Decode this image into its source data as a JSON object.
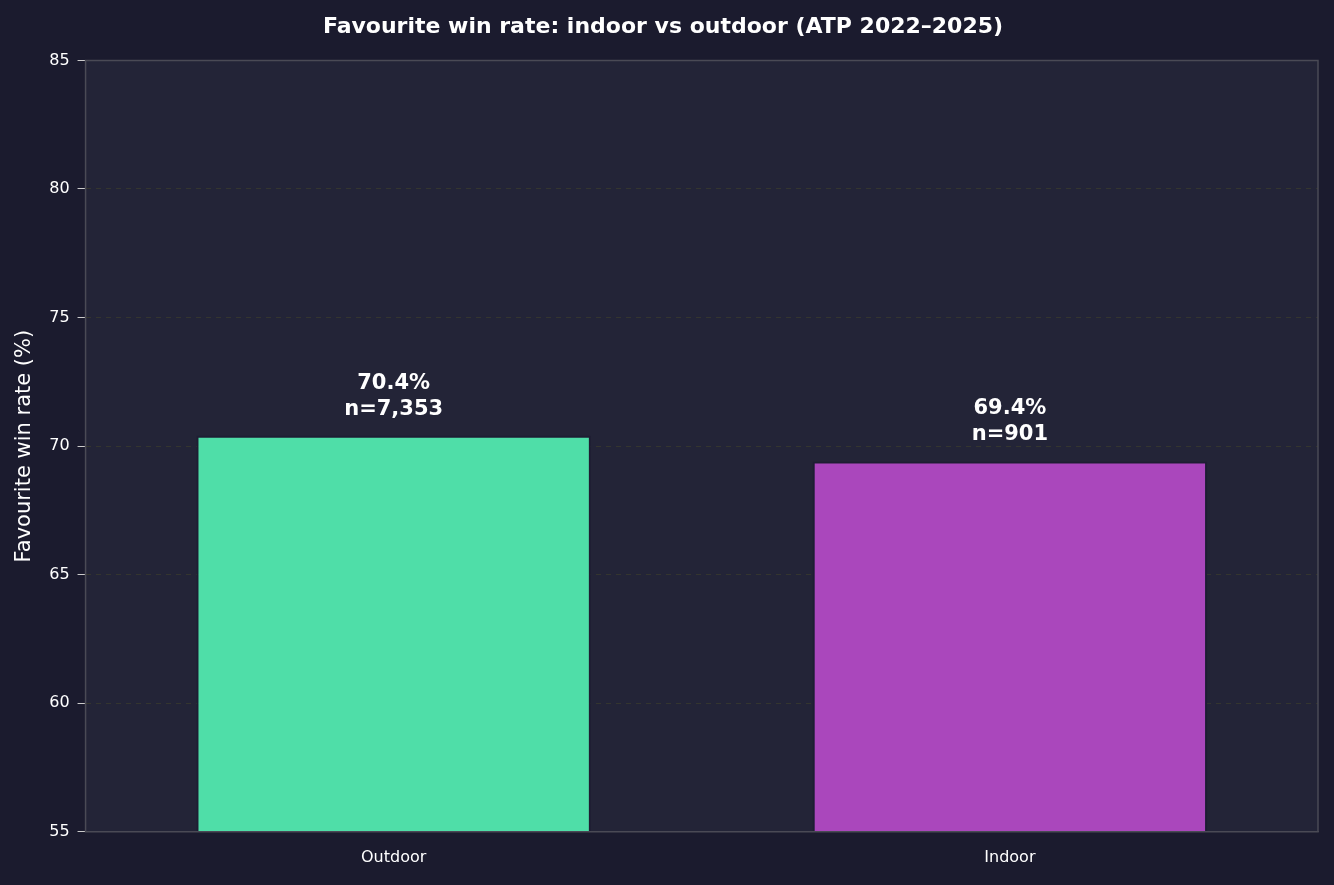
{
  "chart_data": {
    "type": "bar",
    "title": "Favourite win rate: indoor vs outdoor (ATP 2022–2025)",
    "ylabel": "Favourite win rate (%)",
    "categories": [
      "Outdoor",
      "Indoor"
    ],
    "values": [
      70.4,
      69.4
    ],
    "colors": [
      "#4fdea8",
      "#aa47bc"
    ],
    "value_labels": [
      "70.4%\nn=7,353",
      "69.4%\nn=901"
    ],
    "ylim": [
      55,
      85
    ],
    "yticks": [
      55,
      60,
      65,
      70,
      75,
      80,
      85
    ],
    "grid": "y",
    "legend": false
  }
}
